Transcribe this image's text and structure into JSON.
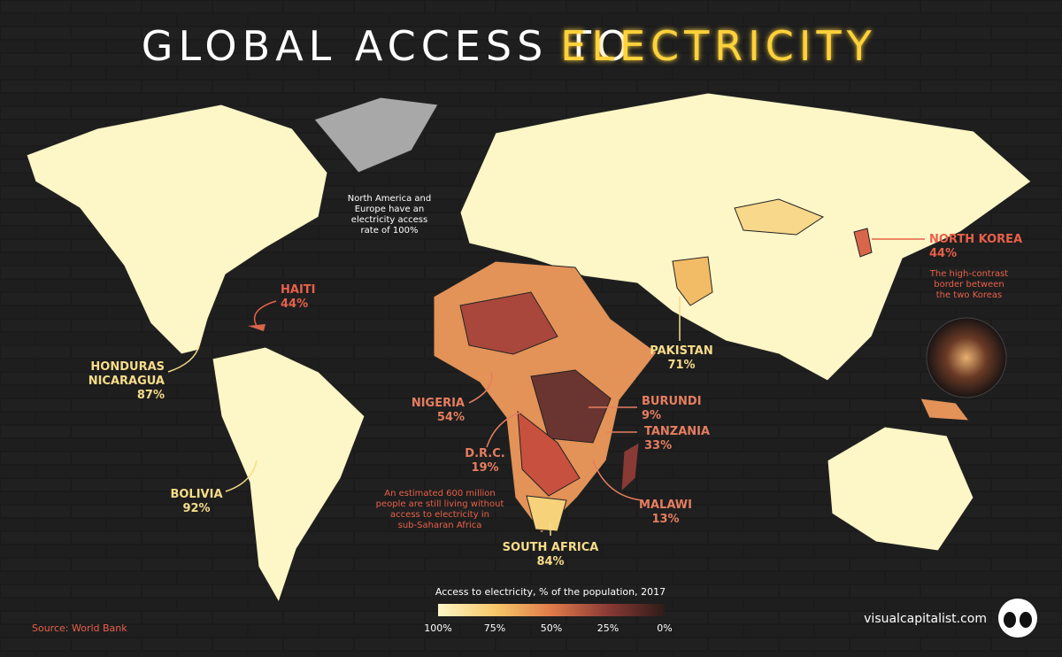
{
  "title": {
    "lead": "GLOBAL ACCESS TO",
    "highlight": "ELECTRICITY"
  },
  "notes": {
    "north_america_europe": [
      "North America and",
      "Europe have an",
      "electricity access",
      "rate of 100%"
    ],
    "korea_inset": [
      "The high-contrast",
      "border between",
      "the two Koreas"
    ],
    "sub_saharan": [
      "An estimated 600 million",
      "people are still living without",
      "access to electricity in",
      "sub-Saharan Africa"
    ]
  },
  "callouts": [
    {
      "name": "NORTH KOREA",
      "value": "44%"
    },
    {
      "name": "HAITI",
      "value": "44%"
    },
    {
      "name": "HONDURAS",
      "name2": "NICARAGUA",
      "value": "87%"
    },
    {
      "name": "PAKISTAN",
      "value": "71%"
    },
    {
      "name": "NIGERIA",
      "value": "54%"
    },
    {
      "name": "BURUNDI",
      "value": "9%"
    },
    {
      "name": "TANZANIA",
      "value": "33%"
    },
    {
      "name": "D.R.C.",
      "value": "19%"
    },
    {
      "name": "BOLIVIA",
      "value": "92%"
    },
    {
      "name": "MALAWI",
      "value": "13%"
    },
    {
      "name": "SOUTH AFRICA",
      "value": "84%"
    }
  ],
  "legend": {
    "title": "Access to electricity, % of the population, 2017",
    "ticks": [
      "100%",
      "75%",
      "50%",
      "25%",
      "0%"
    ]
  },
  "source": "Source: World Bank",
  "brand": "visualcapitalist.com"
}
